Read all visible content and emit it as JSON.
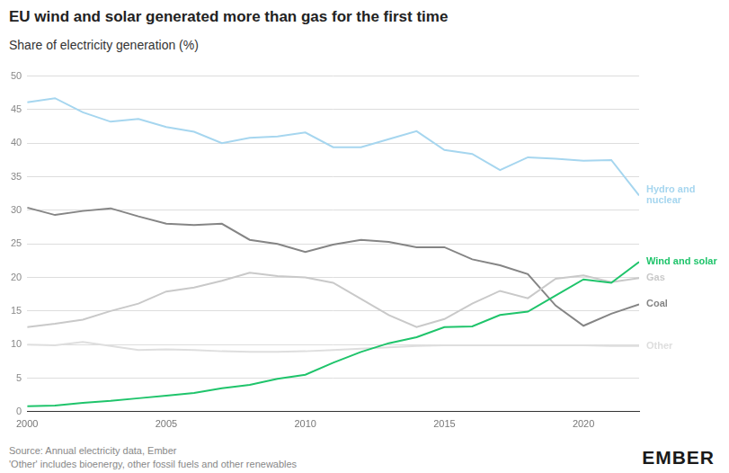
{
  "chart_data": {
    "type": "line",
    "title": "EU wind and solar generated more than gas for the first time",
    "subtitle": "Share of electricity generation (%)",
    "source": "Source: Annual electricity data, Ember",
    "note": "'Other' includes bioenergy, other fossil fuels and other renewables",
    "logo": "EMBER",
    "x": [
      2000,
      2001,
      2002,
      2003,
      2004,
      2005,
      2006,
      2007,
      2008,
      2009,
      2010,
      2011,
      2012,
      2013,
      2014,
      2015,
      2016,
      2017,
      2018,
      2019,
      2020,
      2021,
      2022
    ],
    "series": [
      {
        "name": "Hydro and nuclear",
        "color": "#a6d6ef",
        "values": [
          46.1,
          46.7,
          44.6,
          43.2,
          43.6,
          42.4,
          41.7,
          40.0,
          40.8,
          41.0,
          41.6,
          39.4,
          39.4,
          40.6,
          41.8,
          39.0,
          38.4,
          36.0,
          37.9,
          37.7,
          37.4,
          37.5,
          32.2
        ]
      },
      {
        "name": "Wind and solar",
        "color": "#1fc46b",
        "values": [
          0.8,
          0.9,
          1.3,
          1.6,
          2.0,
          2.4,
          2.8,
          3.5,
          4.0,
          4.9,
          5.5,
          7.3,
          8.9,
          10.2,
          11.1,
          12.6,
          12.7,
          14.4,
          14.9,
          17.3,
          19.7,
          19.2,
          22.3
        ]
      },
      {
        "name": "Gas",
        "color": "#c9c9c9",
        "values": [
          12.6,
          13.1,
          13.7,
          15.0,
          16.1,
          17.9,
          18.5,
          19.5,
          20.7,
          20.2,
          20.0,
          19.2,
          16.8,
          14.4,
          12.6,
          13.8,
          16.1,
          18.0,
          16.9,
          19.8,
          20.3,
          19.3,
          19.9
        ]
      },
      {
        "name": "Coal",
        "color": "#858585",
        "values": [
          30.4,
          29.3,
          29.9,
          30.3,
          29.1,
          28.0,
          27.8,
          28.0,
          25.6,
          25.0,
          23.8,
          24.9,
          25.6,
          25.3,
          24.5,
          24.5,
          22.7,
          21.8,
          20.5,
          15.8,
          12.8,
          14.6,
          16.0
        ]
      },
      {
        "name": "Other",
        "color": "#dedede",
        "values": [
          10.0,
          9.9,
          10.4,
          9.8,
          9.2,
          9.3,
          9.2,
          9.0,
          8.9,
          8.9,
          9.0,
          9.2,
          9.4,
          9.6,
          9.8,
          9.9,
          9.9,
          9.9,
          9.9,
          9.9,
          9.9,
          9.8,
          9.8
        ]
      }
    ],
    "xlim": [
      2000,
      2022
    ],
    "xticks": [
      2000,
      2005,
      2010,
      2015,
      2020
    ],
    "ylim": [
      0,
      50
    ],
    "yticks": [
      0,
      5,
      10,
      15,
      20,
      25,
      30,
      35,
      40,
      45,
      50
    ],
    "grid": true
  }
}
